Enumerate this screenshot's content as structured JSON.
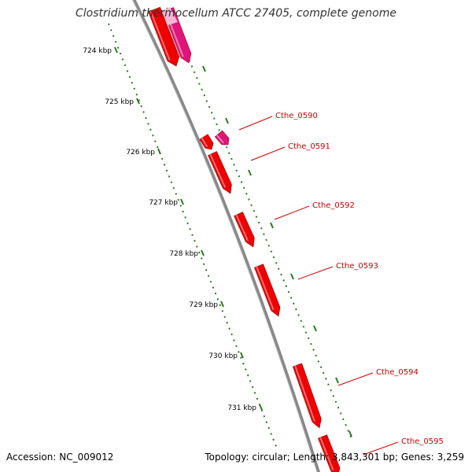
{
  "title": "Clostridium thermocellum ATCC 27405, complete genome",
  "footer": {
    "accession": "Accession: NC_009012",
    "summary": "Topology: circular; Length: 3,843,301 bp; Genes: 3,259"
  },
  "colors": {
    "backbone": "#8a8a8a",
    "ticks": "#2a7a1a",
    "gene_forward": "#ee0000",
    "gene_other": "#e0157a",
    "label": "#cc0000"
  },
  "ticks": [
    {
      "label": "724 kbp"
    },
    {
      "label": "725 kbp"
    },
    {
      "label": "726 kbp"
    },
    {
      "label": "727 kbp"
    },
    {
      "label": "728 kbp"
    },
    {
      "label": "729 kbp"
    },
    {
      "label": "730 kbp"
    },
    {
      "label": "731 kbp"
    }
  ],
  "genes": [
    {
      "name": "Cthe_0590"
    },
    {
      "name": "Cthe_0591"
    },
    {
      "name": "Cthe_0592"
    },
    {
      "name": "Cthe_0593"
    },
    {
      "name": "Cthe_0594"
    },
    {
      "name": "Cthe_0595"
    }
  ]
}
